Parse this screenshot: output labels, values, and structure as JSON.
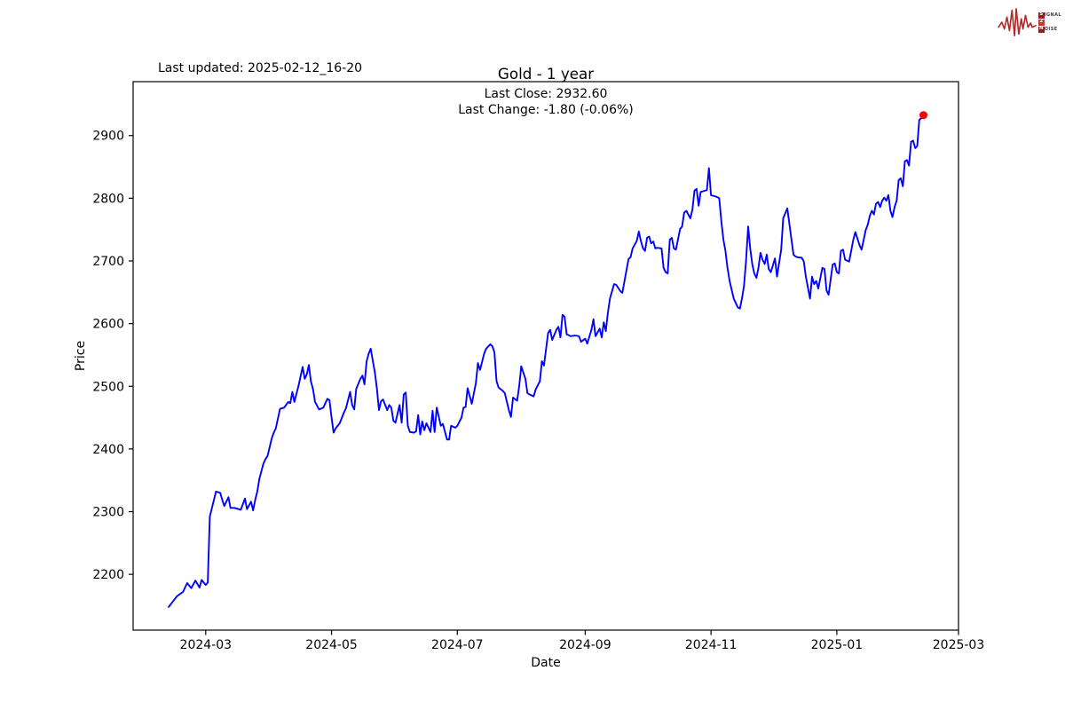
{
  "header": {
    "last_updated": "Last updated: 2025-02-12_16-20",
    "title": "Gold - 1 year",
    "last_close_label": "Last Close: 2932.60",
    "last_change_label": "Last Change: -1.80 (-0.06%)"
  },
  "logo": {
    "s": "S",
    "s_rest": "IGNAL",
    "two": "2",
    "n": "N",
    "n_rest": "OISE"
  },
  "chart_data": {
    "type": "line",
    "title": "Gold - 1 year",
    "xlabel": "Date",
    "ylabel": "Price",
    "last_close": 2932.6,
    "last_change": -1.8,
    "last_change_pct": "-0.06%",
    "line_color": "#0000ff",
    "marker_color": "#ff0000",
    "grid": false,
    "legend": null,
    "y_ticks": [
      2200,
      2300,
      2400,
      2500,
      2600,
      2700,
      2800,
      2900
    ],
    "y_range": [
      2111,
      2986
    ],
    "x_axis_range": [
      "2024-01-25",
      "2025-03-01"
    ],
    "x_ticks": [
      {
        "date": "2024-03-01",
        "label": "2024-03"
      },
      {
        "date": "2024-05-01",
        "label": "2024-05"
      },
      {
        "date": "2024-07-01",
        "label": "2024-07"
      },
      {
        "date": "2024-09-01",
        "label": "2024-09"
      },
      {
        "date": "2024-11-01",
        "label": "2024-11"
      },
      {
        "date": "2025-01-01",
        "label": "2025-01"
      },
      {
        "date": "2025-03-01",
        "label": "2025-03"
      }
    ],
    "series": [
      [
        "2024-02-12",
        2148
      ],
      [
        "2024-02-16",
        2165
      ],
      [
        "2024-02-19",
        2172
      ],
      [
        "2024-02-21",
        2186
      ],
      [
        "2024-02-23",
        2178
      ],
      [
        "2024-02-25",
        2190
      ],
      [
        "2024-02-27",
        2179
      ],
      [
        "2024-02-28",
        2191
      ],
      [
        "2024-03-01",
        2183
      ],
      [
        "2024-03-02",
        2187
      ],
      [
        "2024-03-03",
        2292
      ],
      [
        "2024-03-04",
        2306
      ],
      [
        "2024-03-06",
        2332
      ],
      [
        "2024-03-08",
        2330
      ],
      [
        "2024-03-09",
        2319
      ],
      [
        "2024-03-10",
        2309
      ],
      [
        "2024-03-12",
        2323
      ],
      [
        "2024-03-13",
        2306
      ],
      [
        "2024-03-15",
        2306
      ],
      [
        "2024-03-17",
        2304
      ],
      [
        "2024-03-18",
        2303
      ],
      [
        "2024-03-20",
        2321
      ],
      [
        "2024-03-21",
        2304
      ],
      [
        "2024-03-23",
        2316
      ],
      [
        "2024-03-24",
        2302
      ],
      [
        "2024-03-25",
        2319
      ],
      [
        "2024-03-26",
        2332
      ],
      [
        "2024-03-27",
        2352
      ],
      [
        "2024-03-29",
        2377
      ],
      [
        "2024-03-30",
        2384
      ],
      [
        "2024-03-31",
        2389
      ],
      [
        "2024-04-02",
        2417
      ],
      [
        "2024-04-03",
        2426
      ],
      [
        "2024-04-04",
        2433
      ],
      [
        "2024-04-06",
        2464
      ],
      [
        "2024-04-08",
        2466
      ],
      [
        "2024-04-10",
        2475
      ],
      [
        "2024-04-11",
        2473
      ],
      [
        "2024-04-12",
        2491
      ],
      [
        "2024-04-13",
        2475
      ],
      [
        "2024-04-15",
        2501
      ],
      [
        "2024-04-17",
        2531
      ],
      [
        "2024-04-18",
        2512
      ],
      [
        "2024-04-19",
        2519
      ],
      [
        "2024-04-20",
        2534
      ],
      [
        "2024-04-21",
        2508
      ],
      [
        "2024-04-22",
        2496
      ],
      [
        "2024-04-23",
        2475
      ],
      [
        "2024-04-25",
        2463
      ],
      [
        "2024-04-27",
        2466
      ],
      [
        "2024-04-29",
        2480
      ],
      [
        "2024-04-30",
        2478
      ],
      [
        "2024-05-01",
        2450
      ],
      [
        "2024-05-02",
        2426
      ],
      [
        "2024-05-03",
        2433
      ],
      [
        "2024-05-05",
        2441
      ],
      [
        "2024-05-07",
        2458
      ],
      [
        "2024-05-08",
        2465
      ],
      [
        "2024-05-10",
        2491
      ],
      [
        "2024-05-11",
        2470
      ],
      [
        "2024-05-12",
        2463
      ],
      [
        "2024-05-13",
        2496
      ],
      [
        "2024-05-15",
        2512
      ],
      [
        "2024-05-16",
        2517
      ],
      [
        "2024-05-17",
        2503
      ],
      [
        "2024-05-18",
        2540
      ],
      [
        "2024-05-19",
        2552
      ],
      [
        "2024-05-20",
        2560
      ],
      [
        "2024-05-22",
        2522
      ],
      [
        "2024-05-23",
        2496
      ],
      [
        "2024-05-24",
        2462
      ],
      [
        "2024-05-25",
        2476
      ],
      [
        "2024-05-26",
        2479
      ],
      [
        "2024-05-28",
        2462
      ],
      [
        "2024-05-29",
        2470
      ],
      [
        "2024-05-30",
        2466
      ],
      [
        "2024-05-31",
        2445
      ],
      [
        "2024-06-01",
        2442
      ],
      [
        "2024-06-03",
        2470
      ],
      [
        "2024-06-04",
        2442
      ],
      [
        "2024-06-05",
        2487
      ],
      [
        "2024-06-06",
        2490
      ],
      [
        "2024-06-07",
        2437
      ],
      [
        "2024-06-08",
        2427
      ],
      [
        "2024-06-10",
        2426
      ],
      [
        "2024-06-11",
        2428
      ],
      [
        "2024-06-12",
        2454
      ],
      [
        "2024-06-13",
        2423
      ],
      [
        "2024-06-14",
        2444
      ],
      [
        "2024-06-15",
        2430
      ],
      [
        "2024-06-16",
        2441
      ],
      [
        "2024-06-18",
        2427
      ],
      [
        "2024-06-19",
        2461
      ],
      [
        "2024-06-20",
        2427
      ],
      [
        "2024-06-21",
        2466
      ],
      [
        "2024-06-23",
        2437
      ],
      [
        "2024-06-24",
        2440
      ],
      [
        "2024-06-26",
        2415
      ],
      [
        "2024-06-27",
        2415
      ],
      [
        "2024-06-28",
        2437
      ],
      [
        "2024-06-30",
        2434
      ],
      [
        "2024-07-01",
        2437
      ],
      [
        "2024-07-03",
        2450
      ],
      [
        "2024-07-04",
        2466
      ],
      [
        "2024-07-05",
        2467
      ],
      [
        "2024-07-06",
        2497
      ],
      [
        "2024-07-08",
        2472
      ],
      [
        "2024-07-10",
        2505
      ],
      [
        "2024-07-11",
        2537
      ],
      [
        "2024-07-12",
        2526
      ],
      [
        "2024-07-14",
        2552
      ],
      [
        "2024-07-15",
        2560
      ],
      [
        "2024-07-17",
        2567
      ],
      [
        "2024-07-18",
        2564
      ],
      [
        "2024-07-19",
        2554
      ],
      [
        "2024-07-20",
        2508
      ],
      [
        "2024-07-21",
        2498
      ],
      [
        "2024-07-23",
        2493
      ],
      [
        "2024-07-24",
        2489
      ],
      [
        "2024-07-26",
        2462
      ],
      [
        "2024-07-27",
        2451
      ],
      [
        "2024-07-28",
        2482
      ],
      [
        "2024-07-30",
        2477
      ],
      [
        "2024-07-31",
        2500
      ],
      [
        "2024-08-01",
        2532
      ],
      [
        "2024-08-03",
        2512
      ],
      [
        "2024-08-04",
        2489
      ],
      [
        "2024-08-05",
        2487
      ],
      [
        "2024-08-07",
        2484
      ],
      [
        "2024-08-08",
        2495
      ],
      [
        "2024-08-10",
        2508
      ],
      [
        "2024-08-11",
        2540
      ],
      [
        "2024-08-12",
        2533
      ],
      [
        "2024-08-14",
        2585
      ],
      [
        "2024-08-15",
        2590
      ],
      [
        "2024-08-16",
        2574
      ],
      [
        "2024-08-18",
        2590
      ],
      [
        "2024-08-19",
        2595
      ],
      [
        "2024-08-20",
        2578
      ],
      [
        "2024-08-21",
        2614
      ],
      [
        "2024-08-22",
        2611
      ],
      [
        "2024-08-23",
        2583
      ],
      [
        "2024-08-25",
        2580
      ],
      [
        "2024-08-27",
        2581
      ],
      [
        "2024-08-29",
        2580
      ],
      [
        "2024-08-30",
        2571
      ],
      [
        "2024-09-01",
        2576
      ],
      [
        "2024-09-02",
        2568
      ],
      [
        "2024-09-04",
        2590
      ],
      [
        "2024-09-05",
        2607
      ],
      [
        "2024-09-06",
        2580
      ],
      [
        "2024-09-08",
        2592
      ],
      [
        "2024-09-09",
        2578
      ],
      [
        "2024-09-10",
        2602
      ],
      [
        "2024-09-11",
        2588
      ],
      [
        "2024-09-12",
        2617
      ],
      [
        "2024-09-13",
        2640
      ],
      [
        "2024-09-15",
        2663
      ],
      [
        "2024-09-16",
        2662
      ],
      [
        "2024-09-18",
        2652
      ],
      [
        "2024-09-19",
        2649
      ],
      [
        "2024-09-22",
        2703
      ],
      [
        "2024-09-23",
        2706
      ],
      [
        "2024-09-24",
        2720
      ],
      [
        "2024-09-26",
        2732
      ],
      [
        "2024-09-27",
        2747
      ],
      [
        "2024-09-28",
        2732
      ],
      [
        "2024-09-29",
        2720
      ],
      [
        "2024-09-30",
        2716
      ],
      [
        "2024-10-01",
        2737
      ],
      [
        "2024-10-02",
        2739
      ],
      [
        "2024-10-03",
        2728
      ],
      [
        "2024-10-04",
        2731
      ],
      [
        "2024-10-05",
        2720
      ],
      [
        "2024-10-06",
        2721
      ],
      [
        "2024-10-08",
        2720
      ],
      [
        "2024-10-09",
        2689
      ],
      [
        "2024-10-10",
        2682
      ],
      [
        "2024-10-11",
        2680
      ],
      [
        "2024-10-12",
        2734
      ],
      [
        "2024-10-13",
        2737
      ],
      [
        "2024-10-14",
        2720
      ],
      [
        "2024-10-15",
        2718
      ],
      [
        "2024-10-17",
        2751
      ],
      [
        "2024-10-18",
        2755
      ],
      [
        "2024-10-19",
        2777
      ],
      [
        "2024-10-20",
        2780
      ],
      [
        "2024-10-22",
        2768
      ],
      [
        "2024-10-23",
        2782
      ],
      [
        "2024-10-24",
        2812
      ],
      [
        "2024-10-25",
        2815
      ],
      [
        "2024-10-26",
        2788
      ],
      [
        "2024-10-27",
        2810
      ],
      [
        "2024-10-29",
        2812
      ],
      [
        "2024-10-30",
        2813
      ],
      [
        "2024-10-31",
        2848
      ],
      [
        "2024-11-01",
        2805
      ],
      [
        "2024-11-04",
        2802
      ],
      [
        "2024-11-05",
        2800
      ],
      [
        "2024-11-06",
        2763
      ],
      [
        "2024-11-07",
        2734
      ],
      [
        "2024-11-08",
        2716
      ],
      [
        "2024-11-09",
        2689
      ],
      [
        "2024-11-10",
        2668
      ],
      [
        "2024-11-11",
        2654
      ],
      [
        "2024-11-12",
        2640
      ],
      [
        "2024-11-13",
        2633
      ],
      [
        "2024-11-14",
        2626
      ],
      [
        "2024-11-15",
        2624
      ],
      [
        "2024-11-16",
        2640
      ],
      [
        "2024-11-17",
        2660
      ],
      [
        "2024-11-18",
        2700
      ],
      [
        "2024-11-19",
        2755
      ],
      [
        "2024-11-20",
        2720
      ],
      [
        "2024-11-21",
        2695
      ],
      [
        "2024-11-22",
        2680
      ],
      [
        "2024-11-23",
        2673
      ],
      [
        "2024-11-24",
        2689
      ],
      [
        "2024-11-25",
        2713
      ],
      [
        "2024-11-26",
        2702
      ],
      [
        "2024-11-27",
        2695
      ],
      [
        "2024-11-28",
        2710
      ],
      [
        "2024-11-29",
        2687
      ],
      [
        "2024-11-30",
        2682
      ],
      [
        "2024-12-02",
        2704
      ],
      [
        "2024-12-03",
        2675
      ],
      [
        "2024-12-05",
        2718
      ],
      [
        "2024-12-06",
        2768
      ],
      [
        "2024-12-08",
        2784
      ],
      [
        "2024-12-10",
        2734
      ],
      [
        "2024-12-11",
        2710
      ],
      [
        "2024-12-12",
        2707
      ],
      [
        "2024-12-13",
        2706
      ],
      [
        "2024-12-15",
        2705
      ],
      [
        "2024-12-16",
        2699
      ],
      [
        "2024-12-17",
        2675
      ],
      [
        "2024-12-19",
        2640
      ],
      [
        "2024-12-20",
        2675
      ],
      [
        "2024-12-21",
        2663
      ],
      [
        "2024-12-22",
        2668
      ],
      [
        "2024-12-23",
        2656
      ],
      [
        "2024-12-25",
        2689
      ],
      [
        "2024-12-26",
        2687
      ],
      [
        "2024-12-27",
        2653
      ],
      [
        "2024-12-28",
        2646
      ],
      [
        "2024-12-30",
        2694
      ],
      [
        "2024-12-31",
        2696
      ],
      [
        "2025-01-01",
        2682
      ],
      [
        "2025-01-02",
        2680
      ],
      [
        "2025-01-03",
        2716
      ],
      [
        "2025-01-04",
        2718
      ],
      [
        "2025-01-05",
        2702
      ],
      [
        "2025-01-07",
        2699
      ],
      [
        "2025-01-09",
        2734
      ],
      [
        "2025-01-10",
        2746
      ],
      [
        "2025-01-12",
        2725
      ],
      [
        "2025-01-13",
        2718
      ],
      [
        "2025-01-15",
        2749
      ],
      [
        "2025-01-16",
        2758
      ],
      [
        "2025-01-17",
        2772
      ],
      [
        "2025-01-18",
        2780
      ],
      [
        "2025-01-19",
        2774
      ],
      [
        "2025-01-20",
        2791
      ],
      [
        "2025-01-21",
        2794
      ],
      [
        "2025-01-22",
        2786
      ],
      [
        "2025-01-23",
        2796
      ],
      [
        "2025-01-24",
        2801
      ],
      [
        "2025-01-25",
        2796
      ],
      [
        "2025-01-26",
        2805
      ],
      [
        "2025-01-27",
        2780
      ],
      [
        "2025-01-28",
        2770
      ],
      [
        "2025-01-29",
        2786
      ],
      [
        "2025-01-30",
        2796
      ],
      [
        "2025-01-31",
        2829
      ],
      [
        "2025-02-01",
        2832
      ],
      [
        "2025-02-02",
        2819
      ],
      [
        "2025-02-03",
        2859
      ],
      [
        "2025-02-04",
        2861
      ],
      [
        "2025-02-05",
        2852
      ],
      [
        "2025-02-06",
        2890
      ],
      [
        "2025-02-07",
        2892
      ],
      [
        "2025-02-08",
        2880
      ],
      [
        "2025-02-09",
        2883
      ],
      [
        "2025-02-10",
        2925
      ],
      [
        "2025-02-11",
        2928
      ],
      [
        "2025-02-12",
        2932.6
      ]
    ]
  }
}
